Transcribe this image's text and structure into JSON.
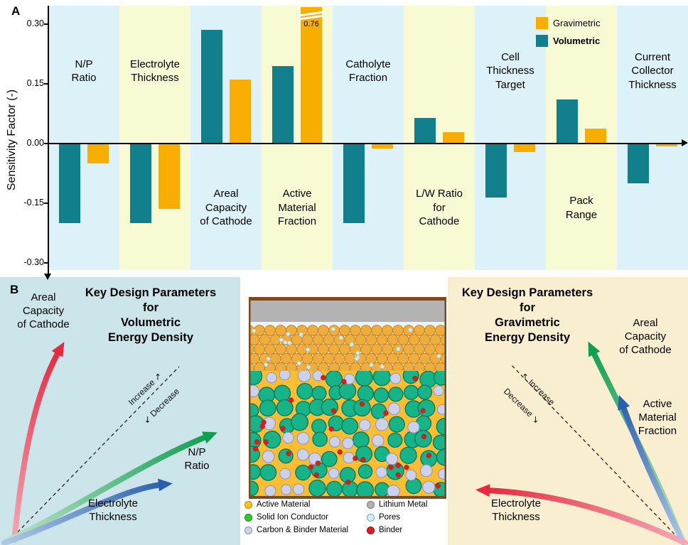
{
  "chart_data": {
    "type": "bar",
    "ylabel": "Sensitivity Factor (-)",
    "ylim": [
      -0.32,
      0.33
    ],
    "yticks": [
      0.3,
      0.15,
      0.0,
      -0.15,
      -0.3
    ],
    "grid": false,
    "legend_position": "top-right",
    "categories": [
      "N/P Ratio",
      "Electrolyte Thickness",
      "Areal Capacity of Cathode",
      "Active Material Fraction",
      "Catholyte Fraction",
      "L/W Ratio for Cathode",
      "Cell Thickness Target",
      "Pack Range",
      "Current Collector Thickness"
    ],
    "category_display": [
      "N/P\nRatio",
      "Electrolyte\nThickness",
      "Areal\nCapacity\nof Cathode",
      "Active\nMaterial\nFraction",
      "Catholyte\nFraction",
      "L/W Ratio\nfor\nCathode",
      "Cell\nThickness\nTarget",
      "Pack\nRange",
      "Current\nCollector\nThickness"
    ],
    "category_label_side": [
      "top",
      "top",
      "bottom",
      "bottom",
      "top",
      "bottom",
      "top",
      "bottom",
      "top"
    ],
    "series": [
      {
        "name": "Volumetric",
        "color": "#12808C",
        "values": [
          -0.2,
          -0.2,
          0.285,
          0.195,
          -0.2,
          0.065,
          -0.135,
          0.11,
          -0.1
        ]
      },
      {
        "name": "Gravimetric",
        "color": "#F7AE00",
        "values": [
          -0.05,
          -0.165,
          0.16,
          0.76,
          -0.012,
          0.028,
          -0.022,
          0.037,
          -0.008
        ]
      }
    ],
    "clipped_bar": {
      "series": "Gravimetric",
      "category": "Active Material Fraction",
      "display_value": "0.76"
    },
    "band_colors": [
      "#DDF2F8",
      "#F7FAD2"
    ]
  },
  "panel_a": {
    "panel_label": "A",
    "legend": {
      "items": [
        {
          "label": "Gravimetric",
          "color": "#F7AE00"
        },
        {
          "label": "Volumetric",
          "color": "#12808C"
        }
      ]
    }
  },
  "panel_b": {
    "panel_label": "B",
    "left": {
      "bg": "#CBE5EB",
      "title": "Key Design Parameters\nfor\nVolumetric\nEnergy Density",
      "increase_label": "Increase ↗",
      "decrease_label": "↙ Decrease",
      "arrows": [
        {
          "name": "areal-capacity-of-cathode",
          "label": "Areal\nCapacity\nof Cathode",
          "color": "#E6273D"
        },
        {
          "name": "np-ratio",
          "label": "N/P\nRatio",
          "color": "#0E9F52"
        },
        {
          "name": "electrolyte-thickness",
          "label": "Electrolyte\nThickness",
          "color": "#2B5FAC"
        }
      ]
    },
    "right": {
      "bg": "#FAEED0",
      "title": "Key Design Parameters\nfor\nGravimetric\nEnergy Density",
      "increase_label": "↖ Increase",
      "decrease_label": "Decrease ↘",
      "arrows": [
        {
          "name": "areal-capacity-of-cathode",
          "label": "Areal\nCapacity\nof Cathode",
          "color": "#0E9F52"
        },
        {
          "name": "active-material-fraction",
          "label": "Active\nMaterial\nFraction",
          "color": "#2B5FAC"
        },
        {
          "name": "electrolyte-thickness",
          "label": "Electrolyte\nThickness",
          "color": "#E6273D"
        }
      ]
    },
    "schematic": {
      "colors": {
        "frame": "#7A4A21",
        "lithium_metal": "#B3B3B3",
        "separator_bg": "#FDF4DF",
        "separator_particle": "#EFAD3F",
        "separator_particle_edge": "#C9861F",
        "pore": "#C9EFF8",
        "active_material": "#FBBE33",
        "conductor": "#17B389",
        "conductor_edge": "#0A7A5B",
        "carbon_binder": "#CDD2EC",
        "carbon_binder_edge": "#8D93B8",
        "binder": "#E3191C"
      }
    },
    "schematic_legend": {
      "col1": [
        {
          "label": "Active Material",
          "color": "#FFC41F"
        },
        {
          "label": "Solid Ion Conductor",
          "color": "#2FC82F"
        },
        {
          "label": "Carbon & Binder Material",
          "color": "#CDD2EC"
        }
      ],
      "col2": [
        {
          "label": "Lithium Metal",
          "color": "#B3B3B3"
        },
        {
          "label": "Pores",
          "color": "#C9EFF8"
        },
        {
          "label": "Binder",
          "color": "#E3191C"
        }
      ]
    }
  }
}
